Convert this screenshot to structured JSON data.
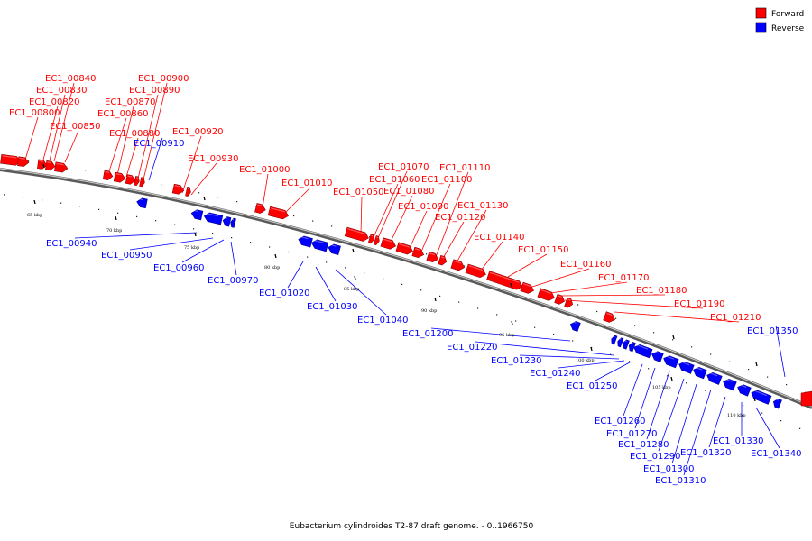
{
  "legend": {
    "forward": "Forward",
    "reverse": "Reverse"
  },
  "colors": {
    "forward": "#ff0000",
    "reverse": "#0000ff",
    "backbone": "#888888"
  },
  "caption": "Eubacterium cylindroides T2-87 draft genome. - 0..1966750",
  "ticks": [
    "65 kbp",
    "70 kbp",
    "75 kbp",
    "80 kbp",
    "85 kbp",
    "90 kbp",
    "95 kbp",
    "100 kbp",
    "105 kbp",
    "110 kbp"
  ],
  "forward_genes": [
    "EC1_00800",
    "EC1_00820",
    "EC1_00830",
    "EC1_00840",
    "EC1_00850",
    "EC1_00860",
    "EC1_00870",
    "EC1_00880",
    "EC1_00890",
    "EC1_00900",
    "EC1_00920",
    "EC1_00930",
    "EC1_01000",
    "EC1_01010",
    "EC1_01050",
    "EC1_01060",
    "EC1_01070",
    "EC1_01080",
    "EC1_01090",
    "EC1_01100",
    "EC1_01110",
    "EC1_01120",
    "EC1_01130",
    "EC1_01140",
    "EC1_01150",
    "EC1_01160",
    "EC1_01170",
    "EC1_01180",
    "EC1_01190",
    "EC1_01210"
  ],
  "reverse_genes": [
    "EC1_00910",
    "EC1_00940",
    "EC1_00950",
    "EC1_00960",
    "EC1_00970",
    "EC1_01020",
    "EC1_01030",
    "EC1_01040",
    "EC1_01200",
    "EC1_01220",
    "EC1_01230",
    "EC1_01240",
    "EC1_01250",
    "EC1_01260",
    "EC1_01270",
    "EC1_01280",
    "EC1_01290",
    "EC1_01300",
    "EC1_01310",
    "EC1_01320",
    "EC1_01330",
    "EC1_01340",
    "EC1_01350"
  ]
}
